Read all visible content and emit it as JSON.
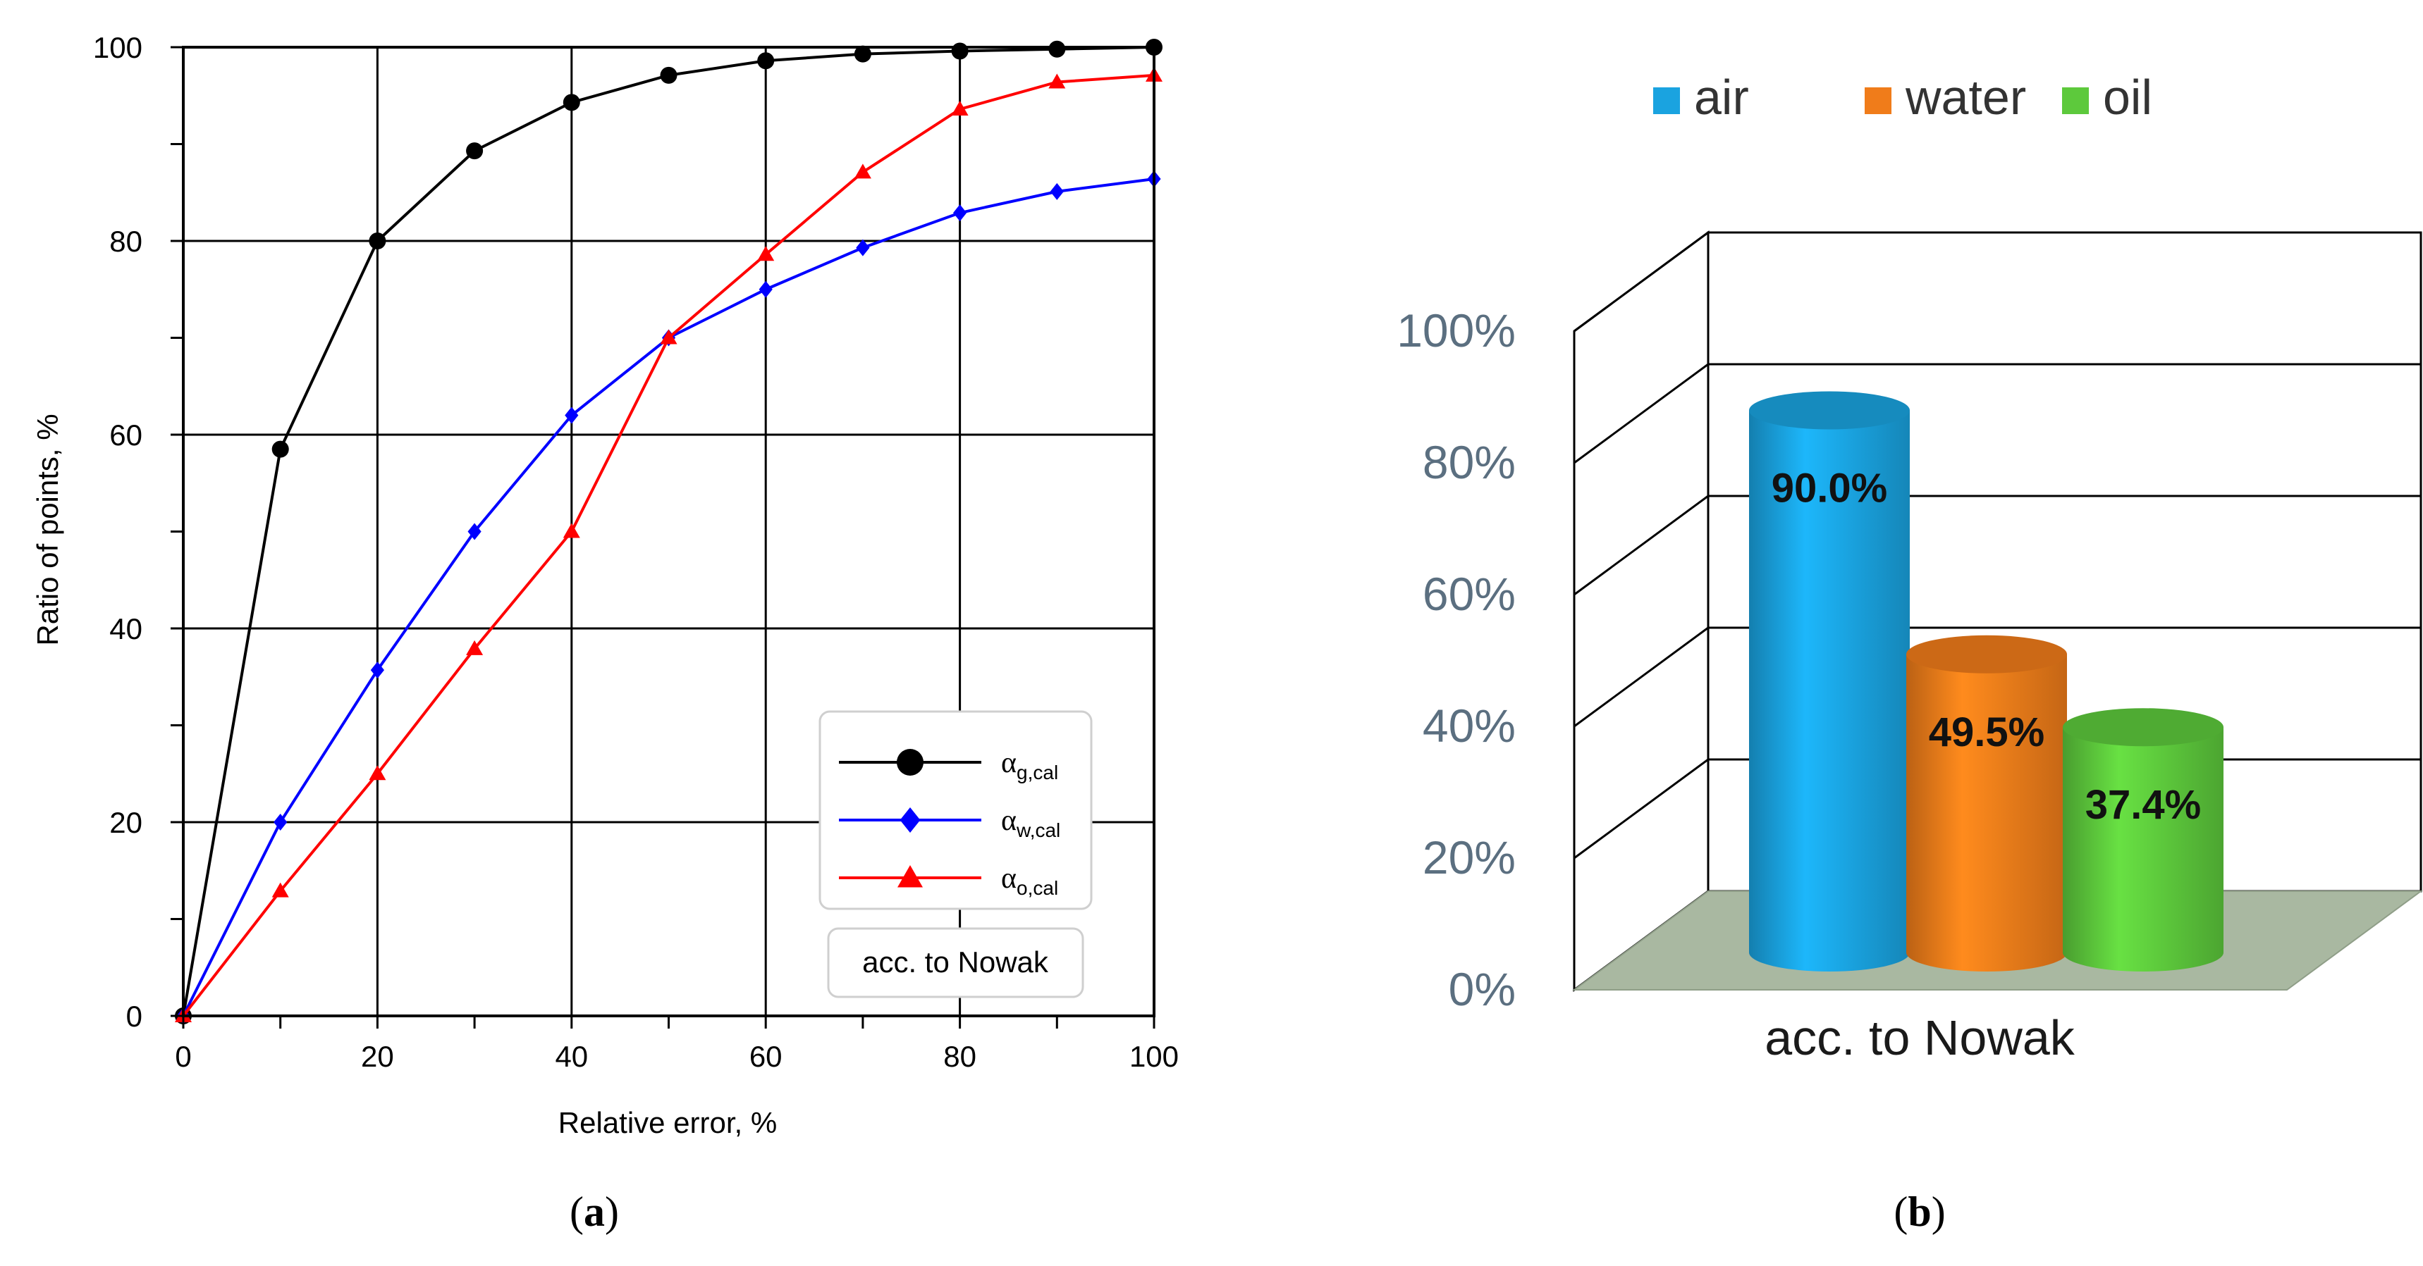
{
  "chart_data": [
    {
      "type": "line",
      "panel_label": "a",
      "xlabel": "Relative error, %",
      "ylabel": "Ratio of points, %",
      "xlim": [
        0,
        100
      ],
      "ylim": [
        0,
        100
      ],
      "xticks": [
        0,
        20,
        40,
        60,
        80,
        100
      ],
      "yticks": [
        0,
        20,
        40,
        60,
        80,
        100
      ],
      "grid": true,
      "x": [
        0,
        10,
        20,
        30,
        40,
        50,
        60,
        70,
        80,
        90,
        100
      ],
      "series": [
        {
          "name": "α_g,cal",
          "symbol": "α",
          "subscript": "g,cal",
          "color": "#000000",
          "marker": "circle",
          "values": [
            0,
            58.5,
            80,
            89.3,
            94.3,
            97.1,
            98.6,
            99.3,
            99.6,
            99.8,
            100
          ]
        },
        {
          "name": "α_w,cal",
          "symbol": "α",
          "subscript": "w,cal",
          "color": "#0000ff",
          "marker": "diamond",
          "values": [
            0,
            20,
            35.7,
            50,
            62,
            70,
            75,
            79.3,
            82.9,
            85.1,
            86.4
          ]
        },
        {
          "name": "α_o,cal",
          "symbol": "α",
          "subscript": "o,cal",
          "color": "#ff0000",
          "marker": "triangle",
          "values": [
            0,
            12.9,
            25,
            37.9,
            50,
            70,
            78.6,
            87.1,
            93.6,
            96.4,
            97.1
          ]
        }
      ],
      "annotation": "acc. to Nowak",
      "legend_position": "bottom-right"
    },
    {
      "type": "bar",
      "style": "3d-cylinder",
      "panel_label": "b",
      "categories": [
        "acc. to Nowak"
      ],
      "ylim": [
        0,
        100
      ],
      "yticks": [
        "0%",
        "20%",
        "40%",
        "60%",
        "80%",
        "100%"
      ],
      "legend_position": "top",
      "series": [
        {
          "name": "air",
          "value": 90.0,
          "label": "90.0%",
          "color": "#1aa3e0"
        },
        {
          "name": "water",
          "value": 49.5,
          "label": "49.5%",
          "color": "#f07c1a"
        },
        {
          "name": "oil",
          "value": 37.4,
          "label": "37.4%",
          "color": "#5dc93c"
        }
      ]
    }
  ]
}
